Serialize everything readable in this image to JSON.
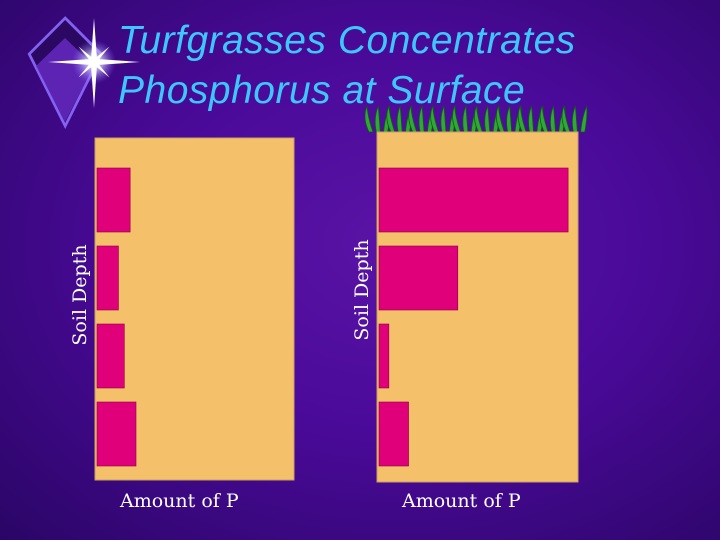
{
  "title": {
    "line1": "Turfgrasses Concentrates",
    "line2": "Phosphorus at Surface"
  },
  "colors": {
    "background": "#4a0a99",
    "title": "#3ec7ff",
    "panel": "#f4c06a",
    "bar": "#e0007a",
    "grass": "#2fa836",
    "sparkle": "#ffffff"
  },
  "icons": {
    "sparkle": "star-sparkle-icon",
    "grass": "grass-blades-icon"
  },
  "chart_data": [
    {
      "type": "bar",
      "orientation": "horizontal",
      "categories": [
        "",
        "",
        "",
        ""
      ],
      "values": [
        17,
        11,
        14,
        20
      ],
      "xlabel": "Amount of P",
      "ylabel": "Soil Depth",
      "xlim": [
        0,
        100
      ],
      "grid": false
    },
    {
      "type": "bar",
      "orientation": "horizontal",
      "categories": [
        "",
        "",
        "",
        ""
      ],
      "values": [
        96,
        40,
        5,
        15
      ],
      "xlabel": "Amount of P",
      "ylabel": "Soil Depth",
      "xlim": [
        0,
        100
      ],
      "grid": false
    }
  ]
}
